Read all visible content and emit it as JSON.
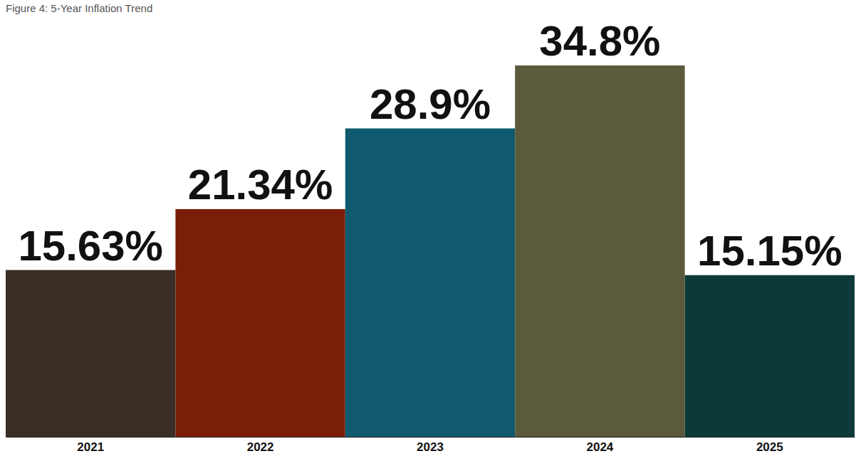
{
  "chart_data": {
    "type": "bar",
    "title": "Figure 4: 5-Year Inflation Trend",
    "categories": [
      "2021",
      "2022",
      "2023",
      "2024",
      "2025"
    ],
    "values": [
      15.63,
      21.34,
      28.9,
      34.8,
      15.15
    ],
    "value_labels": [
      "15.63%",
      "21.34%",
      "28.9%",
      "34.8%",
      "15.15%"
    ],
    "colors": [
      "#3a2e26",
      "#7a1e0a",
      "#0f5a6e",
      "#5b5a3c",
      "#0c3a38"
    ],
    "data_labels": true,
    "tick_labels": "x",
    "grid": false
  }
}
